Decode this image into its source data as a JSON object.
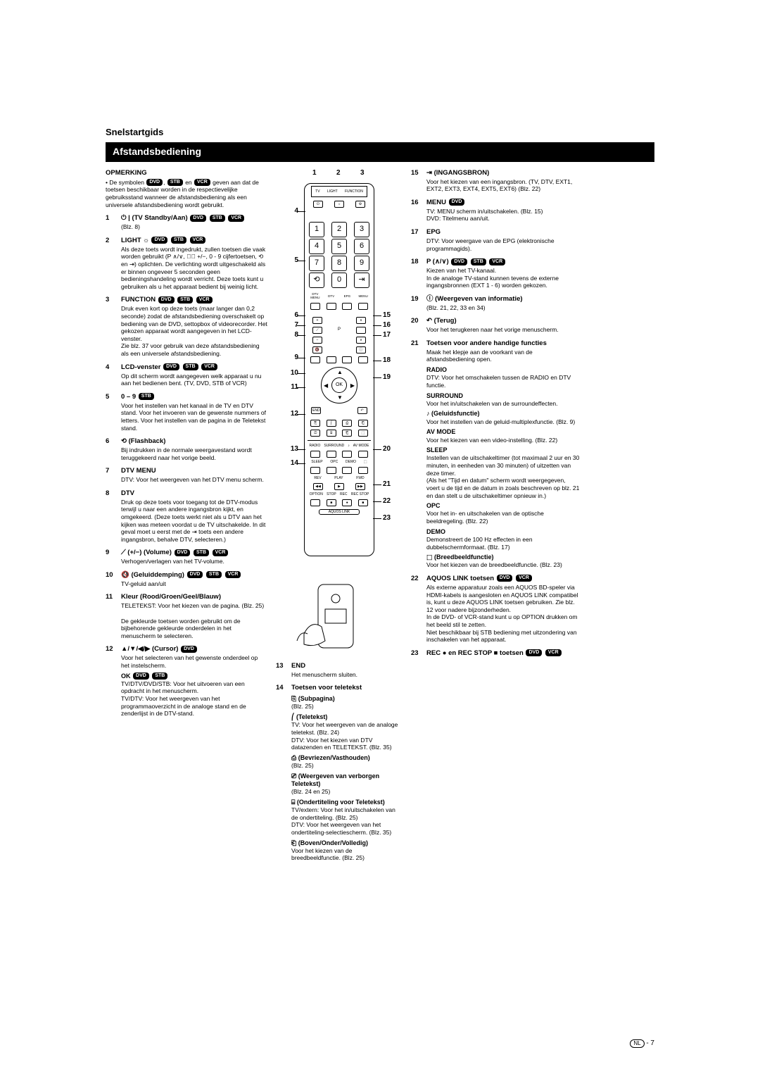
{
  "section_title": "Snelstartgids",
  "black_bar": "Afstandsbediening",
  "page_footer": {
    "lang": "NL",
    "page": "- 7"
  },
  "left": {
    "opmerking_h": "OPMERKING",
    "opmerking_body_pre": "De symbolen ",
    "opmerking_body_post": " geven aan dat de toetsen beschikbaar worden in de respectievelijke gebruiksstand wanneer de afstandsbediening als een universele afstandsbediening wordt gebruikt.",
    "items": [
      {
        "n": "1",
        "title": "⏻ | (TV Standby/Aan)",
        "badges": [
          "DVD",
          "STB",
          "VCR"
        ],
        "desc": "(Blz. 8)"
      },
      {
        "n": "2",
        "title": "LIGHT ☼",
        "badges": [
          "DVD",
          "STB",
          "VCR"
        ],
        "desc": "Als deze toets wordt ingedrukt, zullen toetsen die vaak worden gebruikt (P ∧/∨, �⃠ +/−, 0 - 9 cijfertoetsen, ⟲ en ⇥) oplichten. De verlichting wordt uitgeschakeld als er binnen ongeveer 5 seconden geen bedieningshandeling wordt verricht. Deze toets kunt u gebruiken als u het apparaat bedient bij weinig licht."
      },
      {
        "n": "3",
        "title": "FUNCTION",
        "badges": [
          "DVD",
          "STB",
          "VCR"
        ],
        "desc": "Druk even kort op deze toets (maar langer dan 0,2 seconde) zodat de afstandsbediening overschakelt op bediening van de DVD, settopbox of videorecorder. Het gekozen apparaat wordt aangegeven in het LCD-venster.\nZie blz. 37 voor gebruik van deze afstandsbediening als een universele afstandsbediening."
      },
      {
        "n": "4",
        "title": "LCD-venster",
        "badges": [
          "DVD",
          "STB",
          "VCR"
        ],
        "desc": "Op dit scherm wordt aangegeven welk apparaat u nu aan het bedienen bent. (TV, DVD, STB of VCR)"
      },
      {
        "n": "5",
        "title": "0 – 9",
        "badges": [
          "STB"
        ],
        "desc": "Voor het instellen van het kanaal in de TV en DTV stand. Voor het invoeren van de gewenste nummers of letters. Voor het instellen van de pagina in de Teletekst stand."
      },
      {
        "n": "6",
        "title": "⟲ (Flashback)",
        "desc": "Bij indrukken in de normale weergavestand wordt teruggekeerd naar het vorige beeld."
      },
      {
        "n": "7",
        "title": "DTV MENU",
        "desc": "DTV: Voor het weergeven van het DTV menu scherm."
      },
      {
        "n": "8",
        "title": "DTV",
        "desc": "Druk op deze toets voor toegang tot de DTV-modus terwijl u naar een andere ingangsbron kijkt, en omgekeerd. (Deze toets werkt niet als u DTV aan het kijken was meteen voordat u de TV uitschakelde. In dit geval moet u eerst met de ⇥ toets een andere ingangsbron, behalve DTV, selecteren.)"
      },
      {
        "n": "9",
        "title": "⟋ (+/−) (Volume)",
        "badges": [
          "DVD",
          "STB",
          "VCR"
        ],
        "desc": "Verhogen/verlagen van het TV-volume."
      },
      {
        "n": "10",
        "title": "🔇 (Geluiddemping)",
        "badges": [
          "DVD",
          "STB",
          "VCR"
        ],
        "desc": "TV-geluid aan/uit"
      },
      {
        "n": "11",
        "title": "Kleur (Rood/Groen/Geel/Blauw)",
        "desc": "TELETEKST: Voor het kiezen van de pagina. (Blz. 25)\n\nDe gekleurde toetsen worden gebruikt om de bijbehorende gekleurde onderdelen in het menuscherm te selecteren."
      },
      {
        "n": "12",
        "title": "▲/▼/◀/▶ (Cursor)",
        "badges": [
          "DVD"
        ],
        "desc": "Voor het selecteren van het gewenste onderdeel op het instelscherm.",
        "sub": [
          {
            "st": "OK",
            "badges": [
              "DVD",
              "STB"
            ],
            "sd": "TV/DTV/DVD/STB: Voor het uitvoeren van een opdracht in het menuscherm.\nTV/DTV: Voor het weergeven van het programmaoverzicht in de analoge stand en de zenderlijst in de DTV-stand."
          }
        ]
      }
    ]
  },
  "mid_lower": {
    "items": [
      {
        "n": "13",
        "title": "END",
        "desc": "Het menuscherm sluiten."
      },
      {
        "n": "14",
        "title": "Toetsen voor teletekst",
        "sub": [
          {
            "st": "⎘ (Subpagina)",
            "sd": "(Blz. 25)"
          },
          {
            "st": "⎛ (Teletekst)",
            "sd": "TV: Voor het weergeven van de analoge teletekst. (Blz. 24)\nDTV: Voor het kiezen van DTV datazenden en TELETEKST. (Blz. 35)"
          },
          {
            "st": "⎙ (Bevriezen/Vasthouden)",
            "sd": "(Blz. 25)"
          },
          {
            "st": "⎚ (Weergeven van verborgen Teletekst)",
            "sd": "(Blz. 24 en 25)"
          },
          {
            "st": "⌸ (Ondertiteling voor Teletekst)",
            "sd": "TV/extern: Voor het in/uitschakelen van de ondertiteling. (Blz. 25)\nDTV: Voor het weergeven van het ondertiteling-selectiescherm. (Blz. 35)"
          },
          {
            "st": "⎗ (Boven/Onder/Volledig)",
            "sd": "Voor het kiezen van de breedbeeldfunctie. (Blz. 25)"
          }
        ]
      }
    ]
  },
  "right": {
    "items": [
      {
        "n": "15",
        "title": "⇥ (INGANGSBRON)",
        "desc": "Voor het kiezen van een ingangsbron. (TV, DTV, EXT1, EXT2, EXT3, EXT4, EXT5, EXT6) (Blz. 22)"
      },
      {
        "n": "16",
        "title": "MENU",
        "badges": [
          "DVD"
        ],
        "desc": "TV: MENU scherm in/uitschakelen. (Blz. 15)\nDVD: Titelmenu aan/uit."
      },
      {
        "n": "17",
        "title": "EPG",
        "desc": "DTV: Voor weergave van de EPG (elektronische programmagids)."
      },
      {
        "n": "18",
        "title": "P (∧/∨)",
        "badges": [
          "DVD",
          "STB",
          "VCR"
        ],
        "desc": "Kiezen van het TV-kanaal.\nIn de analoge TV-stand kunnen tevens de externe ingangsbronnen (EXT 1 - 6) worden gekozen."
      },
      {
        "n": "19",
        "title": "ⓘ (Weergeven van informatie)",
        "desc": "(Blz. 21, 22, 33 en 34)"
      },
      {
        "n": "20",
        "title": "↶ (Terug)",
        "desc": "Voor het terugkeren naar het vorige menuscherm."
      },
      {
        "n": "21",
        "title": "Toetsen voor andere handige functies",
        "desc": "Maak het klepje aan de voorkant van de afstandsbediening open.",
        "sub": [
          {
            "st": "RADIO",
            "sd": "DTV: Voor het omschakelen tussen de RADIO en DTV functie."
          },
          {
            "st": "SURROUND",
            "sd": "Voor het in/uitschakelen van de surroundeffecten."
          },
          {
            "st": "♪ (Geluidsfunctie)",
            "sd": "Voor het instellen van de geluid-multiplexfunctie. (Blz. 9)"
          },
          {
            "st": "AV MODE",
            "sd": "Voor het kiezen van een video-instelling. (Blz. 22)"
          },
          {
            "st": "SLEEP",
            "sd": "Instellen van de uitschakeltimer (tot maximaal 2 uur en 30 minuten, in eenheden van 30 minuten) of uitzetten van deze timer.\n(Als het \"Tijd en datum\" scherm wordt weergegeven, voert u de tijd en de datum in zoals beschreven op blz. 21 en dan stelt u de uitschakeltimer opnieuw in.)"
          },
          {
            "st": "OPC",
            "sd": "Voor het in- en uitschakelen van de optische beeldregeling. (Blz. 22)"
          },
          {
            "st": "DEMO",
            "sd": "Demonstreert de 100 Hz effecten in een dubbelschermformaat. (Blz. 17)"
          },
          {
            "st": "⬚ (Breedbeeldfunctie)",
            "sd": "Voor het kiezen van de breedbeeldfunctie. (Blz. 23)"
          }
        ]
      },
      {
        "n": "22",
        "title": "AQUOS LINK toetsen",
        "badges": [
          "DVD",
          "VCR"
        ],
        "desc": "Als externe apparatuur zoals een AQUOS BD-speler via HDMI-kabels is aangesloten en AQUOS LINK compatibel is, kunt u deze AQUOS LINK toetsen gebruiken. Zie blz. 12 voor nadere bijzonderheden.\nIn de DVD- of VCR-stand kunt u op OPTION drukken om het beeld stil te zetten.\nNiet beschikbaar bij STB bediening met uitzondering van inschakelen van het apparaat."
      },
      {
        "n": "23",
        "title": "REC ● en REC STOP ■ toetsen",
        "badges": [
          "DVD",
          "VCR"
        ],
        "desc": ""
      }
    ]
  },
  "remote": {
    "top_callouts": {
      "c1": "1",
      "c2": "2",
      "c3": "3"
    },
    "left_callouts": [
      "4",
      "5",
      "6",
      "7",
      "8",
      "9",
      "10",
      "11",
      "12",
      "13",
      "14"
    ],
    "right_callouts": [
      "15",
      "16",
      "17",
      "18",
      "19",
      "20",
      "21",
      "22",
      "23"
    ],
    "lcd_labels": [
      "TV",
      "LIGHT",
      "FUNCTION"
    ],
    "keypad": [
      [
        "1",
        "2",
        "3"
      ],
      [
        "4",
        "5",
        "6"
      ],
      [
        "7",
        "8",
        "9"
      ],
      [
        "⟲",
        "0",
        "⇥"
      ]
    ],
    "menu_row": [
      "DTV MENU",
      "DTV",
      "EPG",
      "MENU"
    ],
    "ok": "OK",
    "bottom_labels1": [
      "RADIO",
      "SURROUND",
      "♪",
      "AV MODE"
    ],
    "bottom_labels2": [
      "SLEEP",
      "OPC",
      "DEMO",
      "⬚"
    ],
    "bottom_labels3": [
      "REV",
      "PLAY",
      "FWD"
    ],
    "bottom_labels4": [
      "OPTION",
      "STOP",
      "REC",
      "REC STOP"
    ],
    "brand": "AQUOS LINK"
  }
}
